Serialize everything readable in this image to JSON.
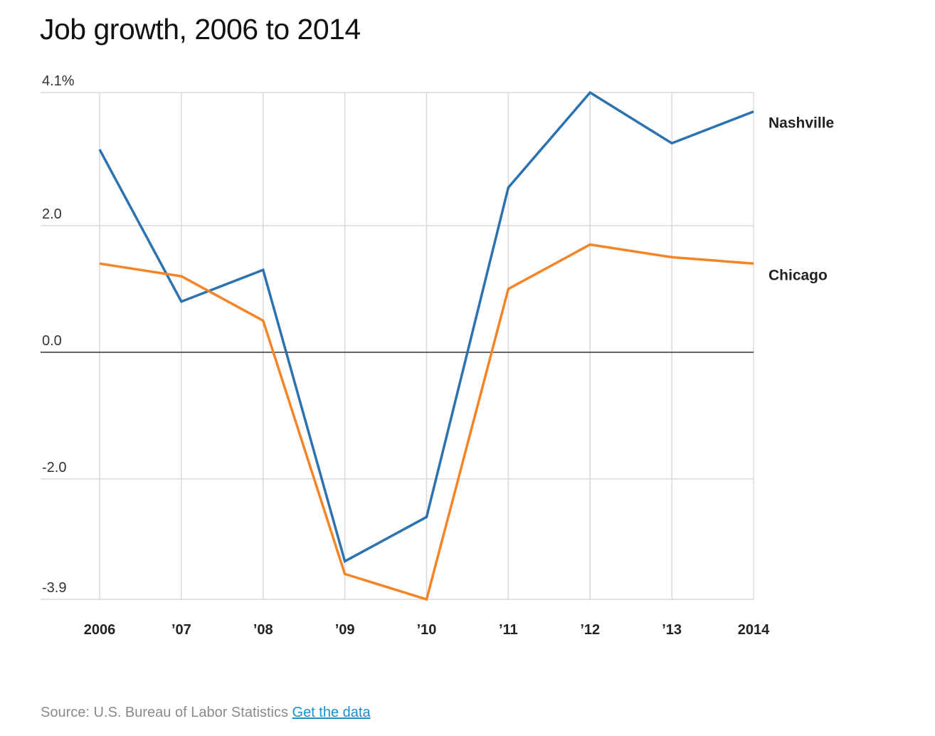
{
  "chart_data": {
    "type": "line",
    "title": "Job growth, 2006 to 2014",
    "x": [
      2006,
      2007,
      2008,
      2009,
      2010,
      2011,
      2012,
      2013,
      2014
    ],
    "x_tick_labels": [
      "2006",
      "’07",
      "’08",
      "’09",
      "’10",
      "’11",
      "’12",
      "’13",
      "2014"
    ],
    "y_tick_values": [
      4.1,
      2.0,
      0.0,
      -2.0,
      -3.9
    ],
    "y_tick_labels": [
      "4.1%",
      "2.0",
      "0.0",
      "-2.0",
      "-3.9"
    ],
    "ylim": [
      -3.9,
      4.1
    ],
    "xlabel": "",
    "ylabel": "",
    "grid": true,
    "legend": "inline labels at right end of lines",
    "series": [
      {
        "name": "Nashville",
        "color": "#2b73b0",
        "values": [
          3.2,
          0.8,
          1.3,
          -3.3,
          -2.6,
          2.6,
          4.1,
          3.3,
          3.8
        ]
      },
      {
        "name": "Chicago",
        "color": "#f58426",
        "values": [
          1.4,
          1.2,
          0.5,
          -3.5,
          -3.9,
          1.0,
          1.7,
          1.5,
          1.4
        ]
      }
    ]
  },
  "footer": {
    "source_text": "Source: U.S. Bureau of Labor Statistics",
    "link_label": "Get the data"
  }
}
